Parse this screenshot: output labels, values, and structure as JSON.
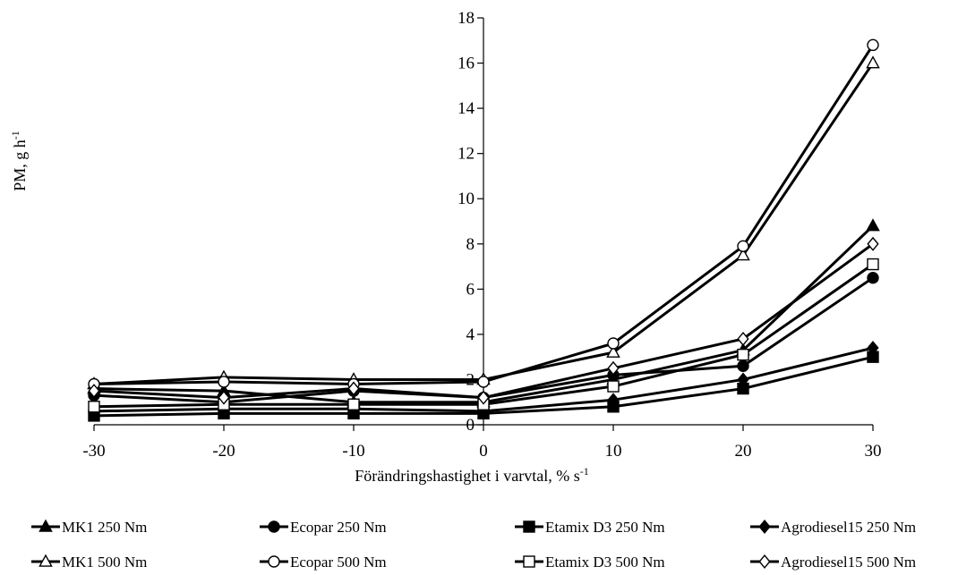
{
  "chart_data": {
    "type": "line",
    "title": "",
    "ylabel": "PM, g h",
    "ylabel_sup": "-1",
    "xlabel": "Förändringshastighet i varvtal, % s",
    "xlabel_sup": "-1",
    "x": [
      -30,
      -20,
      -10,
      0,
      10,
      20,
      30
    ],
    "xlim": [
      -30,
      30
    ],
    "ylim": [
      0,
      18
    ],
    "yticks": [
      0,
      2,
      4,
      6,
      8,
      10,
      12,
      14,
      16,
      18
    ],
    "xticks": [
      -30,
      -20,
      -10,
      0,
      10,
      20,
      30
    ],
    "grid": false,
    "legend_position": "bottom",
    "series": [
      {
        "name": "MK1 250 Nm",
        "marker": "triangle",
        "fill": "filled",
        "values": [
          1.6,
          1.5,
          1.0,
          1.0,
          2.0,
          3.3,
          8.8
        ]
      },
      {
        "name": "Ecopar 250 Nm",
        "marker": "circle",
        "fill": "filled",
        "values": [
          1.3,
          1.0,
          1.5,
          1.2,
          2.2,
          2.6,
          6.5
        ]
      },
      {
        "name": "Etamix D3 250 Nm",
        "marker": "square",
        "fill": "filled",
        "values": [
          0.4,
          0.5,
          0.5,
          0.5,
          0.8,
          1.6,
          3.0
        ]
      },
      {
        "name": "Agrodiesel15 250 Nm",
        "marker": "diamond",
        "fill": "filled",
        "values": [
          0.6,
          0.7,
          0.7,
          0.6,
          1.1,
          2.0,
          3.4
        ]
      },
      {
        "name": "MK1 500 Nm",
        "marker": "triangle",
        "fill": "open",
        "values": [
          1.8,
          2.1,
          2.0,
          2.0,
          3.2,
          7.5,
          16.0
        ]
      },
      {
        "name": "Ecopar 500 Nm",
        "marker": "circle",
        "fill": "open",
        "values": [
          1.8,
          1.9,
          1.8,
          1.9,
          3.6,
          7.9,
          16.8
        ]
      },
      {
        "name": "Etamix D3 500 Nm",
        "marker": "square",
        "fill": "open",
        "values": [
          0.8,
          0.9,
          0.9,
          0.9,
          1.7,
          3.1,
          7.1
        ]
      },
      {
        "name": "Agrodiesel15 500 Nm",
        "marker": "diamond",
        "fill": "open",
        "values": [
          1.5,
          1.2,
          1.6,
          1.2,
          2.5,
          3.8,
          8.0
        ]
      }
    ]
  }
}
